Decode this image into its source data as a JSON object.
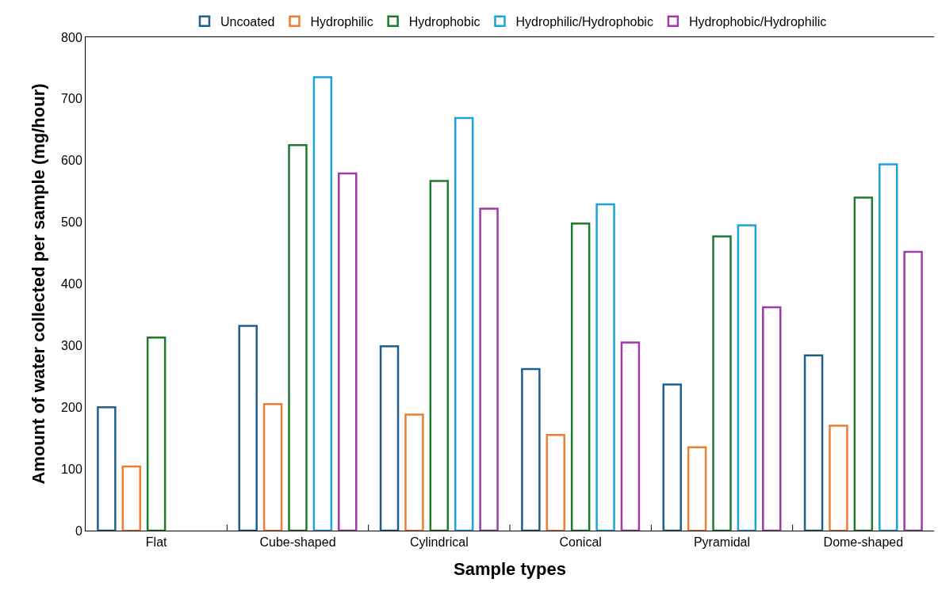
{
  "chart_data": {
    "type": "bar",
    "xlabel": "Sample types",
    "ylabel": "Amount of water collected per sample (mg/hour)",
    "categories": [
      "Flat",
      "Cube-shaped",
      "Cylindrical",
      "Conical",
      "Pyramidal",
      "Dome-shaped"
    ],
    "series": [
      {
        "name": "Uncoated",
        "color": "#1f5f8b",
        "values": [
          200,
          332,
          299,
          262,
          237,
          284
        ]
      },
      {
        "name": "Hydrophilic",
        "color": "#ed7d31",
        "values": [
          104,
          205,
          188,
          155,
          135,
          170
        ]
      },
      {
        "name": "Hydrophobic",
        "color": "#1e7b2e",
        "values": [
          313,
          625,
          567,
          498,
          477,
          540
        ]
      },
      {
        "name": "Hydrophilic/Hydrophobic",
        "color": "#1aa3dc",
        "values": [
          null,
          735,
          669,
          529,
          495,
          594
        ]
      },
      {
        "name": "Hydrophobic/Hydrophilic",
        "color": "#a03aa8",
        "values": [
          null,
          579,
          522,
          305,
          362,
          452
        ]
      }
    ],
    "ylim": [
      0,
      800
    ],
    "yticks": [
      0,
      100,
      200,
      300,
      400,
      500,
      600,
      700,
      800
    ],
    "legend": "top"
  }
}
